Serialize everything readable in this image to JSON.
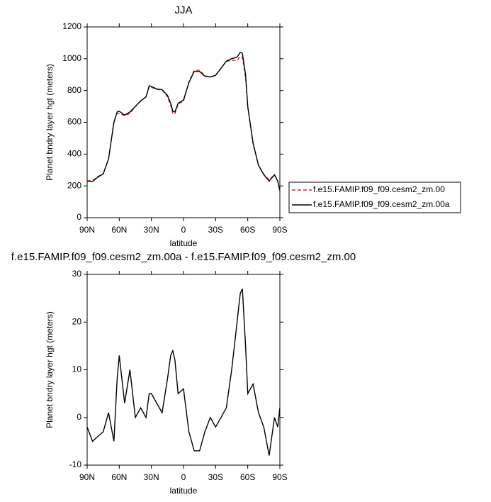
{
  "chart_data": [
    {
      "type": "line",
      "title": "JJA",
      "x_label": "latitude",
      "y_label": "Planet bndry layer hgt (meters)",
      "x": [
        90,
        85,
        80,
        75,
        70,
        65,
        62,
        60,
        55,
        50,
        45,
        40,
        35,
        32,
        30,
        25,
        20,
        15,
        12,
        10,
        8,
        5,
        0,
        -5,
        -10,
        -15,
        -20,
        -25,
        -30,
        -35,
        -40,
        -45,
        -50,
        -53,
        -55,
        -58,
        -60,
        -65,
        -70,
        -75,
        -80,
        -85,
        -88,
        -90
      ],
      "series": [
        {
          "name": "f.e15.FAMIP.f09_f09.cesm2_zm.00",
          "color": "#d62728",
          "dash": "dashed",
          "values": [
            232,
            233,
            259,
            278,
            369,
            605,
            657,
            657,
            642,
            655,
            700,
            733,
            760,
            825,
            820,
            807,
            804,
            762,
            707,
            656,
            653,
            715,
            734,
            853,
            927,
            927,
            893,
            885,
            897,
            940,
            983,
            990,
            990,
            1014,
            1008,
            885,
            695,
            463,
            329,
            272,
            238,
            270,
            232,
            168
          ]
        },
        {
          "name": "f.e15.FAMIP.f09_f09.cesm2_zm.00a",
          "color": "#000000",
          "dash": "solid",
          "values": [
            230,
            228,
            255,
            275,
            370,
            600,
            665,
            670,
            645,
            665,
            700,
            735,
            760,
            830,
            825,
            810,
            805,
            770,
            720,
            670,
            665,
            720,
            740,
            850,
            920,
            920,
            890,
            885,
            895,
            940,
            985,
            1000,
            1010,
            1040,
            1035,
            900,
            700,
            470,
            330,
            270,
            230,
            270,
            230,
            170
          ]
        }
      ],
      "xlim": [
        90,
        -90
      ],
      "xticks": [
        {
          "value": 90,
          "label": "90N"
        },
        {
          "value": 60,
          "label": "60N"
        },
        {
          "value": 30,
          "label": "30N"
        },
        0,
        {
          "value": -30,
          "label": "30S"
        },
        {
          "value": -60,
          "label": "60S"
        },
        {
          "value": -90,
          "label": "90S"
        }
      ],
      "ylim": [
        0,
        1200
      ],
      "yticks": [
        0,
        200,
        400,
        600,
        800,
        1000,
        1200
      ],
      "legend": "right"
    },
    {
      "type": "line",
      "title": "f.e15.FAMIP.f09_f09.cesm2_zm.00a - f.e15.FAMIP.f09_f09.cesm2_zm.00",
      "x_label": "latitude",
      "y_label": "Planet bndry layer hgt (meters)",
      "x": [
        90,
        85,
        80,
        75,
        70,
        65,
        62,
        60,
        55,
        50,
        45,
        40,
        35,
        32,
        30,
        25,
        20,
        15,
        12,
        10,
        8,
        5,
        0,
        -5,
        -10,
        -15,
        -20,
        -25,
        -30,
        -35,
        -40,
        -45,
        -50,
        -53,
        -55,
        -58,
        -60,
        -65,
        -70,
        -75,
        -80,
        -85,
        -88,
        -90
      ],
      "series": [
        {
          "color": "#000000",
          "dash": "solid",
          "values": [
            -2,
            -5,
            -4,
            -3,
            1,
            -5,
            8,
            13,
            3,
            10,
            0,
            2,
            0,
            5,
            5,
            3,
            1,
            8,
            13,
            14,
            12,
            5,
            6,
            -3,
            -7,
            -7,
            -3,
            0,
            -2,
            0,
            2,
            10,
            20,
            26,
            27,
            15,
            5,
            7,
            1,
            -2,
            -8,
            0,
            -2,
            2
          ]
        }
      ],
      "xlim": [
        90,
        -90
      ],
      "xticks": [
        {
          "value": 90,
          "label": "90N"
        },
        {
          "value": 60,
          "label": "60N"
        },
        {
          "value": 30,
          "label": "30N"
        },
        0,
        {
          "value": -30,
          "label": "30S"
        },
        {
          "value": -60,
          "label": "60S"
        },
        {
          "value": -90,
          "label": "90S"
        }
      ],
      "ylim": [
        -10,
        30
      ],
      "yticks": [
        -10,
        0,
        10,
        20,
        30
      ]
    }
  ]
}
